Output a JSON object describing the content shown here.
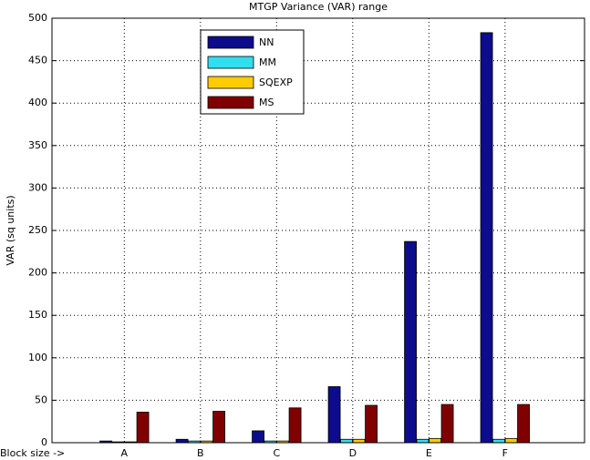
{
  "chart_data": {
    "type": "bar",
    "title": "MTGP Variance (VAR) range",
    "y_label": "VAR (sq units)",
    "x_annotation": "Block size ->",
    "categories": [
      "A",
      "B",
      "C",
      "D",
      "E",
      "F"
    ],
    "series": [
      {
        "name": "NN",
        "color": "#0c0c8c",
        "values": [
          2,
          4,
          14,
          66,
          237,
          483
        ]
      },
      {
        "name": "MM",
        "color": "#33ddee",
        "values": [
          1,
          2,
          2,
          4,
          4,
          4
        ]
      },
      {
        "name": "SQEXP",
        "color": "#ffcc00",
        "values": [
          1,
          2,
          2,
          4,
          5,
          5
        ]
      },
      {
        "name": "MS",
        "color": "#800000",
        "values": [
          36,
          37,
          41,
          44,
          45,
          45
        ]
      }
    ],
    "ylim": [
      0,
      500
    ],
    "yticks": [
      0,
      50,
      100,
      150,
      200,
      250,
      300,
      350,
      400,
      450,
      500
    ],
    "grid": true,
    "legend": "top"
  }
}
